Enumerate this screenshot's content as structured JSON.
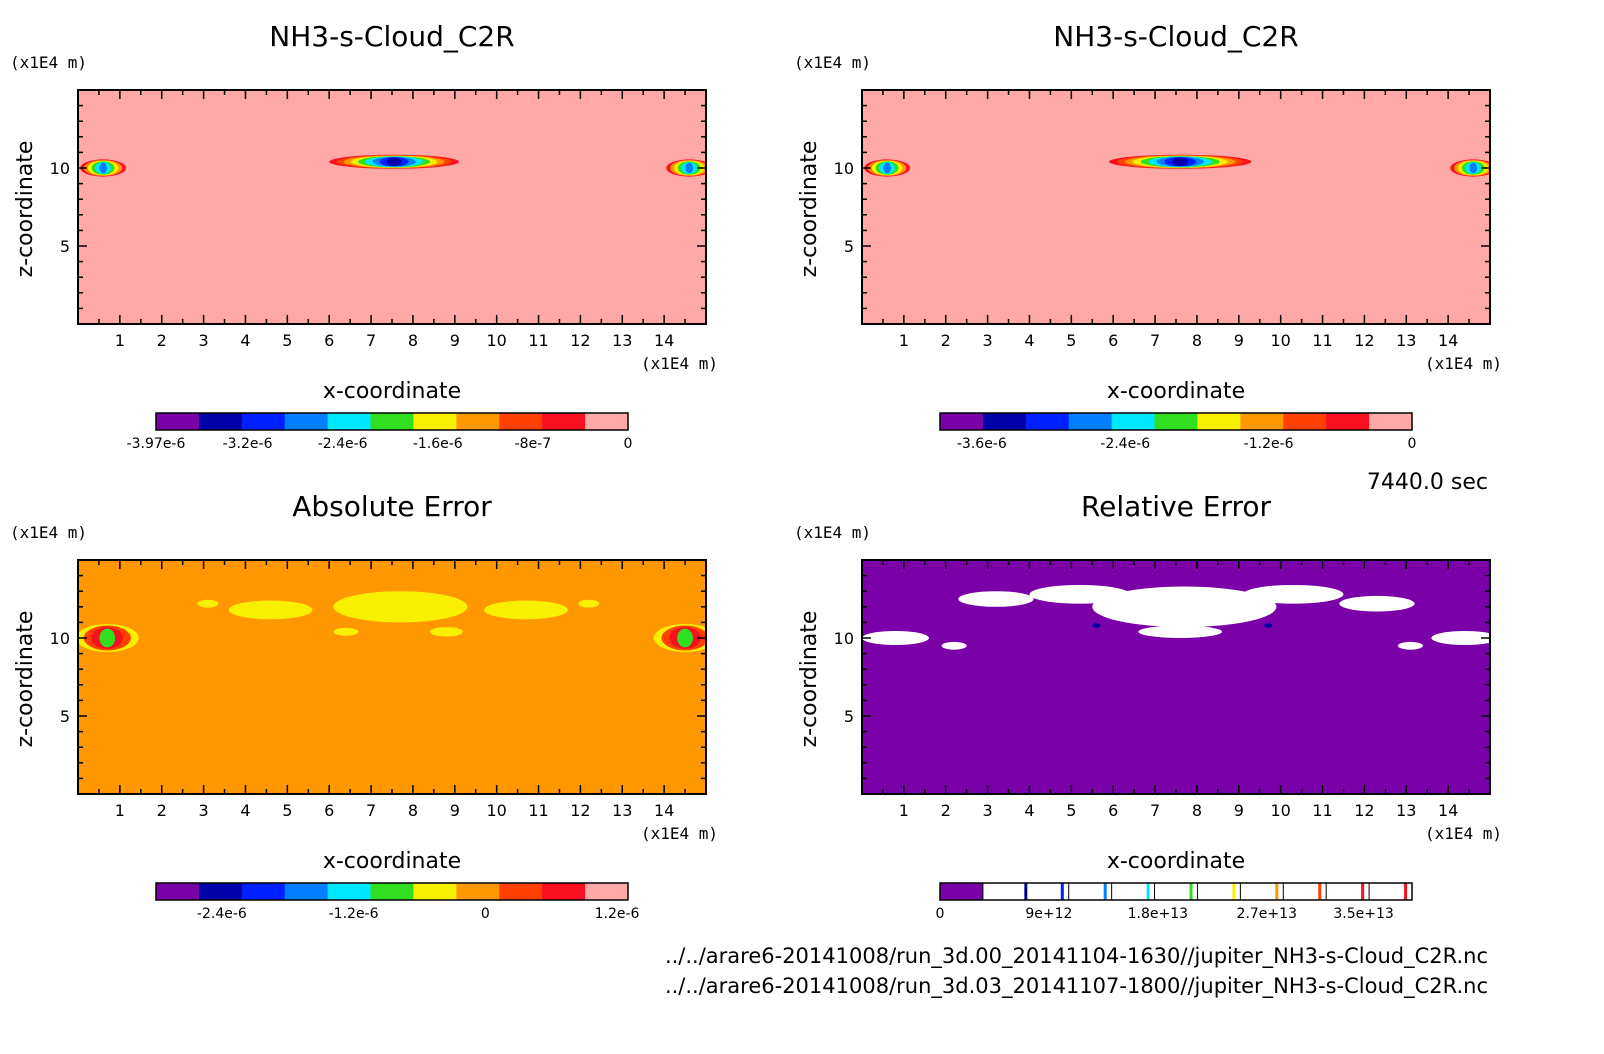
{
  "time_label": "7440.0 sec",
  "files": [
    "../../arare6-20141008/run_3d.00_20141104-1630//jupiter_NH3-s-Cloud_C2R.nc",
    "../../arare6-20141008/run_3d.03_20141107-1800//jupiter_NH3-s-Cloud_C2R.nc"
  ],
  "colors": {
    "purple": "#7a00a8",
    "navy": "#0000a8",
    "blue": "#0020ff",
    "azure": "#0080ff",
    "cyan": "#00e8ff",
    "green": "#30e020",
    "yellow": "#f8f000",
    "orange": "#ff9800",
    "redorange": "#ff4000",
    "red": "#f81020",
    "pink": "#ffa8a8",
    "white": "#ffffff"
  },
  "chart_data": [
    {
      "type": "heatmap",
      "title": "NH3-s-Cloud_C2R",
      "xlabel": "x-coordinate",
      "ylabel": "z-coordinate",
      "x_unit": "(x1E4 m)",
      "y_unit": "(x1E4 m)",
      "xlim": [
        0,
        15
      ],
      "ylim": [
        0,
        15
      ],
      "xticks": [
        1,
        2,
        3,
        4,
        5,
        6,
        7,
        8,
        9,
        10,
        11,
        12,
        13,
        14
      ],
      "yticks": [
        5,
        10
      ],
      "background_color": "pink",
      "colorbar": {
        "colors": [
          "purple",
          "navy",
          "blue",
          "azure",
          "cyan",
          "green",
          "yellow",
          "orange",
          "redorange",
          "red",
          "pink"
        ],
        "labels": [
          "-3.97e-6",
          "-3.2e-6",
          "-2.4e-6",
          "-1.6e-6",
          "-8e-7",
          "0"
        ],
        "label_values": [
          -3.97e-06,
          -3.2e-06,
          -2.4e-06,
          -1.6e-06,
          -8e-07,
          0
        ],
        "range": [
          -3.97e-06,
          0
        ]
      },
      "features": [
        {
          "kind": "blob",
          "cx": 7.55,
          "cz": 10.4,
          "rx": 1.55,
          "rz": 0.45,
          "colors": [
            "red",
            "redorange",
            "orange",
            "yellow",
            "green",
            "cyan",
            "azure",
            "blue",
            "navy"
          ]
        },
        {
          "kind": "blob",
          "cx": 0.6,
          "cz": 10.0,
          "rx": 0.55,
          "rz": 0.55,
          "colors": [
            "red",
            "orange",
            "yellow",
            "green",
            "cyan",
            "azure"
          ]
        },
        {
          "kind": "blob",
          "cx": 14.6,
          "cz": 10.0,
          "rx": 0.55,
          "rz": 0.55,
          "colors": [
            "red",
            "orange",
            "yellow",
            "green",
            "cyan",
            "azure"
          ]
        }
      ]
    },
    {
      "type": "heatmap",
      "title": "NH3-s-Cloud_C2R",
      "xlabel": "x-coordinate",
      "ylabel": "z-coordinate",
      "x_unit": "(x1E4 m)",
      "y_unit": "(x1E4 m)",
      "xlim": [
        0,
        15
      ],
      "ylim": [
        0,
        15
      ],
      "xticks": [
        1,
        2,
        3,
        4,
        5,
        6,
        7,
        8,
        9,
        10,
        11,
        12,
        13,
        14
      ],
      "yticks": [
        5,
        10
      ],
      "background_color": "pink",
      "colorbar": {
        "colors": [
          "purple",
          "navy",
          "blue",
          "azure",
          "cyan",
          "green",
          "yellow",
          "orange",
          "redorange",
          "red",
          "pink"
        ],
        "labels": [
          "-3.6e-6",
          "-2.4e-6",
          "-1.2e-6",
          "0"
        ],
        "label_values": [
          -3.6e-06,
          -2.4e-06,
          -1.2e-06,
          0
        ],
        "range": [
          -3.95e-06,
          0
        ]
      },
      "features": [
        {
          "kind": "blob",
          "cx": 7.6,
          "cz": 10.4,
          "rx": 1.7,
          "rz": 0.45,
          "colors": [
            "red",
            "redorange",
            "orange",
            "yellow",
            "green",
            "cyan",
            "azure",
            "blue",
            "navy"
          ]
        },
        {
          "kind": "blob",
          "cx": 0.6,
          "cz": 10.0,
          "rx": 0.55,
          "rz": 0.55,
          "colors": [
            "red",
            "orange",
            "yellow",
            "green",
            "cyan",
            "azure"
          ]
        },
        {
          "kind": "blob",
          "cx": 14.6,
          "cz": 10.0,
          "rx": 0.55,
          "rz": 0.55,
          "colors": [
            "red",
            "orange",
            "yellow",
            "green",
            "cyan",
            "azure"
          ]
        }
      ]
    },
    {
      "type": "heatmap",
      "title": "Absolute Error",
      "xlabel": "x-coordinate",
      "ylabel": "z-coordinate",
      "x_unit": "(x1E4 m)",
      "y_unit": "(x1E4 m)",
      "xlim": [
        0,
        15
      ],
      "ylim": [
        0,
        15
      ],
      "xticks": [
        1,
        2,
        3,
        4,
        5,
        6,
        7,
        8,
        9,
        10,
        11,
        12,
        13,
        14
      ],
      "yticks": [
        5,
        10
      ],
      "background_color": "orange",
      "colorbar": {
        "colors": [
          "purple",
          "navy",
          "blue",
          "azure",
          "cyan",
          "green",
          "yellow",
          "orange",
          "redorange",
          "red",
          "pink"
        ],
        "labels": [
          "-2.4e-6",
          "-1.2e-6",
          "0",
          "1.2e-6"
        ],
        "label_values": [
          -2.4e-06,
          -1.2e-06,
          0,
          1.2e-06
        ],
        "range": [
          -3e-06,
          1.3e-06
        ]
      },
      "features": [
        {
          "kind": "patch",
          "cx": 3.1,
          "cz": 12.2,
          "rx": 0.25,
          "rz": 0.25,
          "color": "yellow"
        },
        {
          "kind": "patch",
          "cx": 4.6,
          "cz": 11.8,
          "rx": 1.0,
          "rz": 0.6,
          "color": "yellow"
        },
        {
          "kind": "patch",
          "cx": 7.7,
          "cz": 12.0,
          "rx": 1.6,
          "rz": 1.0,
          "color": "yellow"
        },
        {
          "kind": "patch",
          "cx": 10.7,
          "cz": 11.8,
          "rx": 1.0,
          "rz": 0.6,
          "color": "yellow"
        },
        {
          "kind": "patch",
          "cx": 12.2,
          "cz": 12.2,
          "rx": 0.25,
          "rz": 0.25,
          "color": "yellow"
        },
        {
          "kind": "patch",
          "cx": 8.8,
          "cz": 10.4,
          "rx": 0.4,
          "rz": 0.3,
          "color": "yellow"
        },
        {
          "kind": "patch",
          "cx": 6.4,
          "cz": 10.4,
          "rx": 0.3,
          "rz": 0.25,
          "color": "yellow"
        },
        {
          "kind": "blob",
          "cx": 0.7,
          "cz": 10.0,
          "rx": 0.75,
          "rz": 0.9,
          "colors": [
            "yellow",
            "redorange",
            "red",
            "green"
          ]
        },
        {
          "kind": "blob",
          "cx": 14.5,
          "cz": 10.0,
          "rx": 0.75,
          "rz": 0.9,
          "colors": [
            "yellow",
            "redorange",
            "red",
            "green"
          ]
        }
      ]
    },
    {
      "type": "heatmap",
      "title": "Relative Error",
      "xlabel": "x-coordinate",
      "ylabel": "z-coordinate",
      "x_unit": "(x1E4 m)",
      "y_unit": "(x1E4 m)",
      "xlim": [
        0,
        15
      ],
      "ylim": [
        0,
        15
      ],
      "xticks": [
        1,
        2,
        3,
        4,
        5,
        6,
        7,
        8,
        9,
        10,
        11,
        12,
        13,
        14
      ],
      "yticks": [
        5,
        10
      ],
      "background_color": "purple",
      "colorbar": {
        "colors": [
          "purple",
          "white",
          "white",
          "white",
          "white",
          "white",
          "white",
          "white",
          "white",
          "white",
          "white"
        ],
        "separator_colors": [
          "navy",
          "blue",
          "azure",
          "cyan",
          "green",
          "yellow",
          "orange",
          "redorange",
          "red",
          "red"
        ],
        "labels": [
          "0",
          "9e+12",
          "1.8e+13",
          "2.7e+13",
          "3.5e+13"
        ],
        "label_values": [
          0,
          9000000000000.0,
          18000000000000.0,
          27000000000000.0,
          35000000000000.0
        ],
        "range": [
          0,
          39000000000000.0
        ]
      },
      "features": [
        {
          "kind": "patch",
          "cx": 3.2,
          "cz": 12.5,
          "rx": 0.9,
          "rz": 0.5,
          "color": "white"
        },
        {
          "kind": "patch",
          "cx": 5.2,
          "cz": 12.8,
          "rx": 1.2,
          "rz": 0.6,
          "color": "white"
        },
        {
          "kind": "patch",
          "cx": 7.7,
          "cz": 12.0,
          "rx": 2.2,
          "rz": 1.3,
          "color": "white"
        },
        {
          "kind": "patch",
          "cx": 7.6,
          "cz": 10.4,
          "rx": 1.0,
          "rz": 0.4,
          "color": "white"
        },
        {
          "kind": "patch",
          "cx": 10.3,
          "cz": 12.8,
          "rx": 1.2,
          "rz": 0.6,
          "color": "white"
        },
        {
          "kind": "patch",
          "cx": 12.3,
          "cz": 12.2,
          "rx": 0.9,
          "rz": 0.5,
          "color": "white"
        },
        {
          "kind": "patch",
          "cx": 0.8,
          "cz": 10.0,
          "rx": 0.8,
          "rz": 0.45,
          "color": "white"
        },
        {
          "kind": "patch",
          "cx": 2.2,
          "cz": 9.5,
          "rx": 0.3,
          "rz": 0.25,
          "color": "white"
        },
        {
          "kind": "patch",
          "cx": 13.1,
          "cz": 9.5,
          "rx": 0.3,
          "rz": 0.25,
          "color": "white"
        },
        {
          "kind": "patch",
          "cx": 14.4,
          "cz": 10.0,
          "rx": 0.8,
          "rz": 0.45,
          "color": "white"
        },
        {
          "kind": "patch",
          "cx": 5.6,
          "cz": 10.8,
          "rx": 0.1,
          "rz": 0.15,
          "color": "navy"
        },
        {
          "kind": "patch",
          "cx": 9.7,
          "cz": 10.8,
          "rx": 0.1,
          "rz": 0.15,
          "color": "navy"
        }
      ]
    }
  ]
}
